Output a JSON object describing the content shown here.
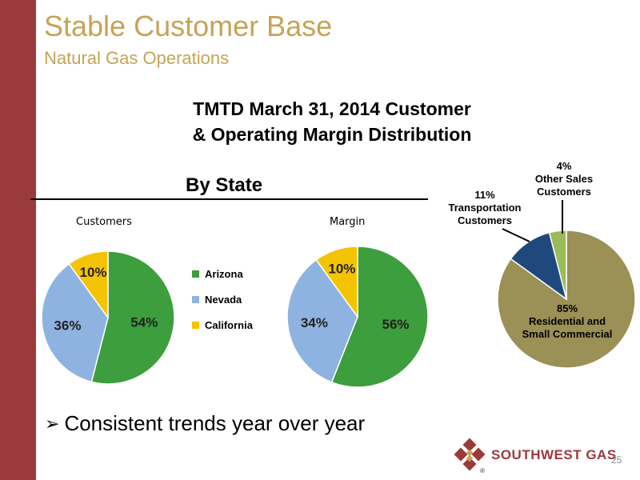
{
  "slide": {
    "title": "Stable Customer Base",
    "subtitle": "Natural Gas Operations",
    "chart_heading_line1": "TMTD March 31, 2014 Customer",
    "chart_heading_line2": "& Operating Margin Distribution",
    "section_label": "By State",
    "bullet": "Consistent trends year over year",
    "page_number": "25",
    "logo_text": "SOUTHWEST GAS",
    "logo_mark": "®"
  },
  "colors": {
    "sidebar": "#9b3a3c",
    "title": "#c5a457",
    "arizona": "#3c9e3c",
    "nevada": "#8fb3e0",
    "california": "#f5c400",
    "residential": "#9b9055",
    "transportation": "#1f497d",
    "other_sales": "#9bbb59"
  },
  "legend": {
    "items": [
      {
        "label": "Arizona",
        "color": "#3c9e3c"
      },
      {
        "label": "Nevada",
        "color": "#8fb3e0"
      },
      {
        "label": "California",
        "color": "#f5c400"
      }
    ]
  },
  "chart_data": [
    {
      "type": "pie",
      "title": "Customers",
      "categories": [
        "Arizona",
        "Nevada",
        "California"
      ],
      "values": [
        54,
        36,
        10
      ],
      "labels": [
        "54%",
        "36%",
        "10%"
      ],
      "legend": "right"
    },
    {
      "type": "pie",
      "title": "Margin",
      "categories": [
        "Arizona",
        "Nevada",
        "California"
      ],
      "values": [
        56,
        34,
        10
      ],
      "labels": [
        "56%",
        "34%",
        "10%"
      ]
    },
    {
      "type": "pie",
      "title": "",
      "categories": [
        "Residential and Small Commercial",
        "Transportation Customers",
        "Other Sales Customers"
      ],
      "values": [
        85,
        11,
        4
      ],
      "labels": [
        "85%",
        "11%",
        "4%"
      ]
    }
  ],
  "segment_labels": {
    "residential": {
      "pct": "85%",
      "line1": "Residential  and",
      "line2": "Small  Commercial"
    },
    "transportation": {
      "pct": "11%",
      "line1": "Transportation",
      "line2": "Customers"
    },
    "other": {
      "pct": "4%",
      "line1": "Other  Sales",
      "line2": "Customers"
    }
  }
}
